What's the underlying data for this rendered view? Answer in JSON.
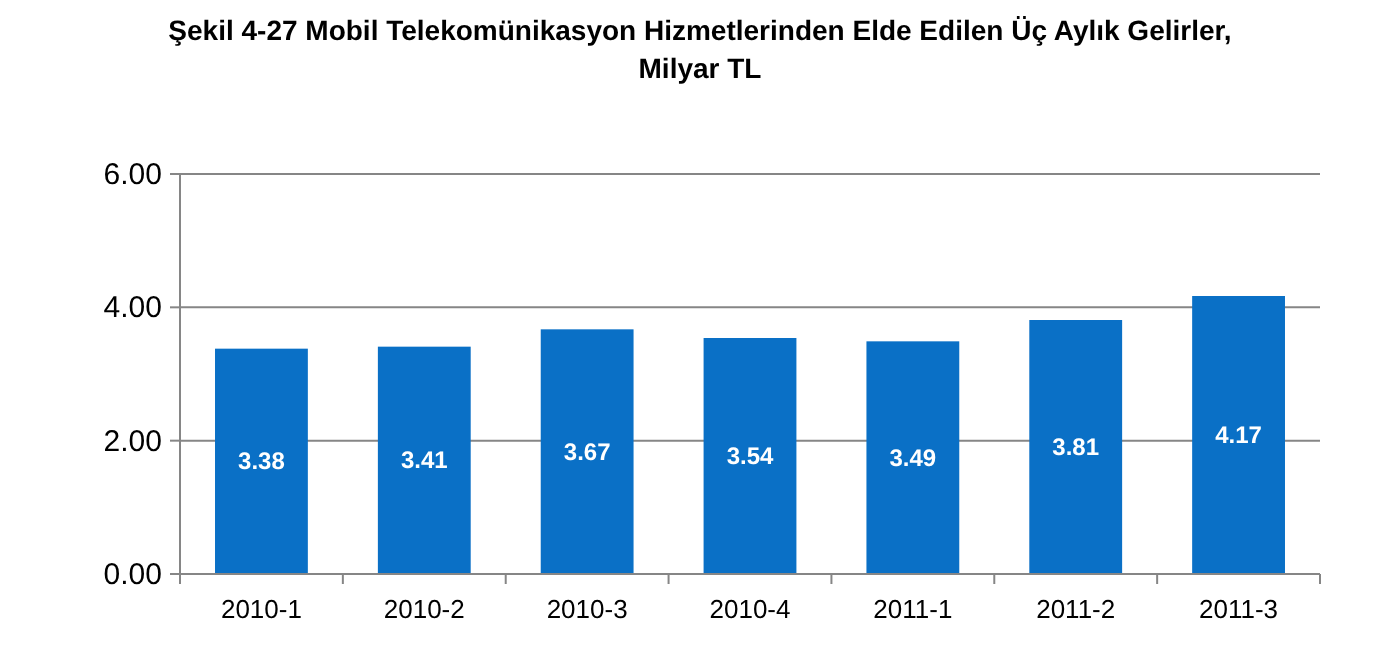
{
  "chart_data": {
    "type": "bar",
    "title": "Şekil 4-27 Mobil Telekomünikasyon Hizmetlerinden Elde Edilen Üç Aylık Gelirler,\nMilyar TL",
    "categories": [
      "2010-1",
      "2010-2",
      "2010-3",
      "2010-4",
      "2011-1",
      "2011-2",
      "2011-3"
    ],
    "values": [
      3.38,
      3.41,
      3.67,
      3.54,
      3.49,
      3.81,
      4.17
    ],
    "color": "#0a70c6",
    "value_labels": [
      "3.38",
      "3.41",
      "3.67",
      "3.54",
      "3.49",
      "3.81",
      "4.17"
    ],
    "ylim": [
      0,
      6
    ],
    "yticks": [
      {
        "value": 0,
        "label": "0.00"
      },
      {
        "value": 2,
        "label": "2.00"
      },
      {
        "value": 4,
        "label": "4.00"
      },
      {
        "value": 6,
        "label": "6.00"
      }
    ],
    "grid": "y"
  }
}
